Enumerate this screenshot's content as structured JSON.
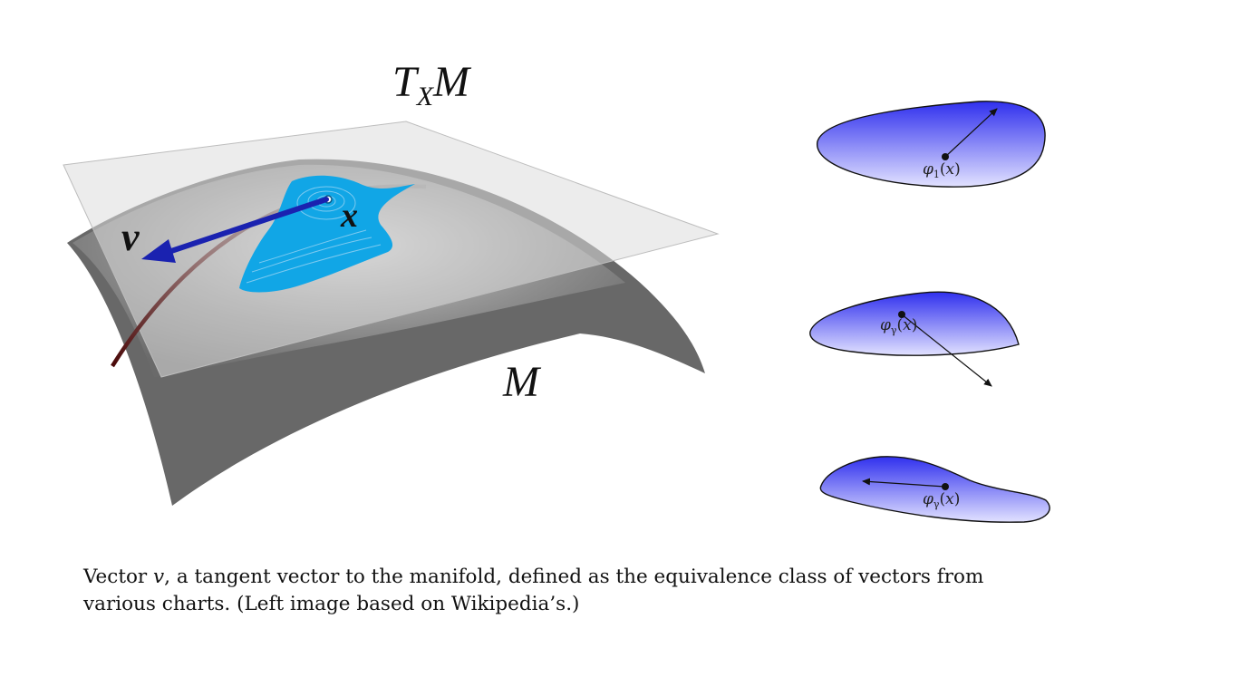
{
  "figure": {
    "labels": {
      "tangent_space": {
        "base": "T",
        "sub": "X",
        "tail": "M"
      },
      "manifold": "M",
      "vector": "v",
      "point": "x"
    },
    "charts": [
      {
        "func": "φ",
        "sub": "1",
        "arg": "x"
      },
      {
        "func": "φ",
        "sub": "γ",
        "arg": "x"
      },
      {
        "func": "φ",
        "sub": "γ",
        "arg": "x"
      }
    ],
    "colors": {
      "chart_blue": "#3333ee",
      "chart_fade": "#e0e0ff",
      "patch_cyan": "#11a6e6",
      "vector_blue": "#1a22b0",
      "surface_dark": "#686868",
      "plane_light": "#d8d8d8",
      "curve_red": "#5a0d0d"
    }
  },
  "caption": {
    "prefix": "Vector ",
    "var": "v",
    "line1_rest": ", a tangent vector to the manifold, defined as the equivalence class of vectors from",
    "line2": "various charts. (Left image based on Wikipedia’s.)"
  }
}
